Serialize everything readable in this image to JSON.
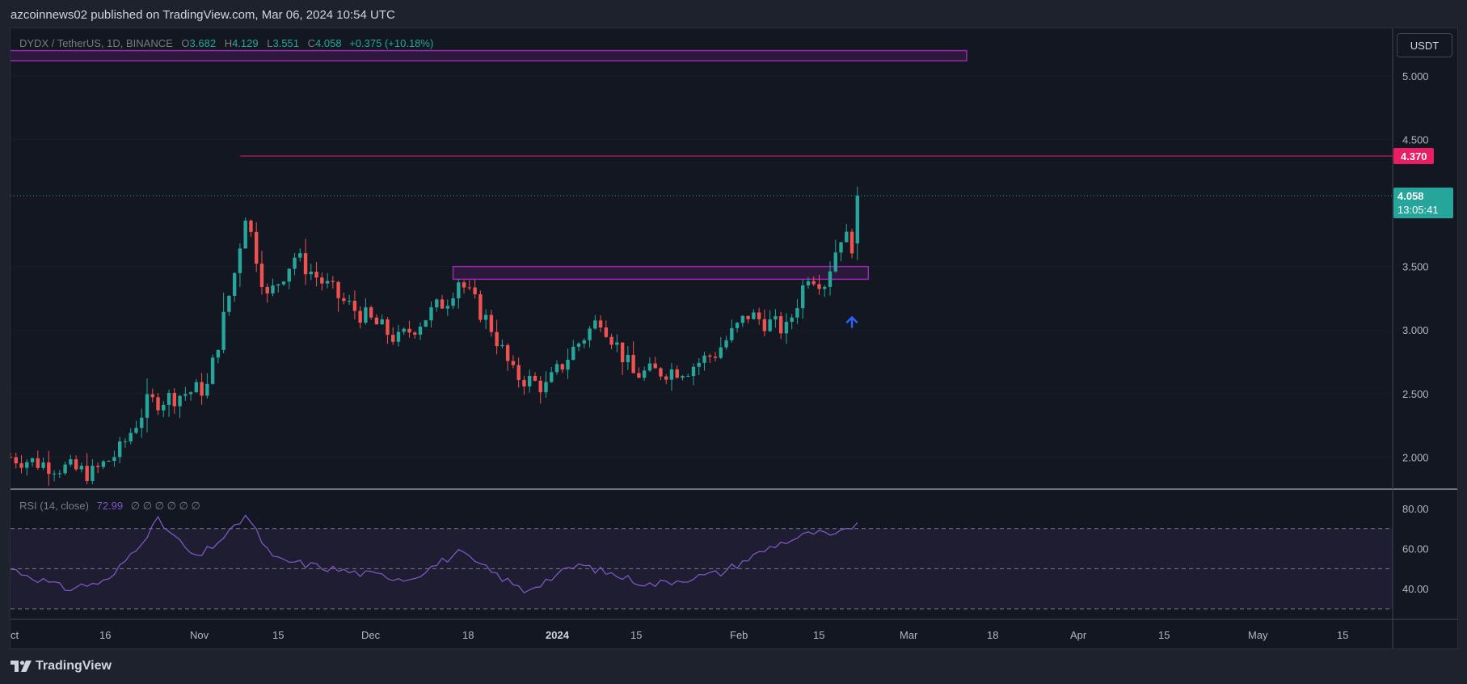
{
  "header": {
    "publisher": "azcoinnews02 published on TradingView.com, Mar 06, 2024 10:54 UTC"
  },
  "legend": {
    "symbol": "DYDX / TetherUS, 1D, BINANCE",
    "o_label": "O",
    "o": "3.682",
    "h_label": "H",
    "h": "4.129",
    "l_label": "L",
    "l": "3.551",
    "c_label": "C",
    "c": "4.058",
    "change": "+0.375 (+10.18%)"
  },
  "currency_button": "USDT",
  "price_axis": {
    "ticks": [
      "5.000",
      "4.500",
      "3.500",
      "3.000",
      "2.500",
      "2.000"
    ],
    "tick_values": [
      5.0,
      4.5,
      3.5,
      3.0,
      2.5,
      2.0
    ],
    "resistance_label": "4.370",
    "last_price_label": "4.058",
    "countdown_label": "13:05:41"
  },
  "rsi": {
    "title": "RSI (14, close)",
    "value": "72.99",
    "extras": "∅ ∅ ∅ ∅ ∅ ∅",
    "ticks": [
      "80.00",
      "60.00",
      "40.00"
    ],
    "tick_values": [
      80,
      60,
      40
    ]
  },
  "time_axis": {
    "labels": [
      "ct",
      "16",
      "Nov",
      "15",
      "Dec",
      "18",
      "2024",
      "15",
      "Feb",
      "15",
      "Mar",
      "18",
      "Apr",
      "15",
      "May",
      "15"
    ],
    "bold": [
      false,
      false,
      false,
      false,
      false,
      false,
      true,
      false,
      false,
      false,
      false,
      false,
      false,
      false,
      false,
      false
    ]
  },
  "brand": {
    "name": "TradingView"
  },
  "colors": {
    "up": "#26a69a",
    "down": "#ef5350",
    "rsi": "#7e57c2",
    "resistance": "#e91e63",
    "zone": "#9c27b0",
    "arrow": "#2962ff"
  },
  "chart_data": {
    "type": "candlestick",
    "symbol": "DYDX / TetherUS",
    "interval": "1D",
    "exchange": "BINANCE",
    "start_date": "2023-10-03",
    "end_date": "2024-03-06",
    "ylim": [
      1.75,
      5.35
    ],
    "key_points": [
      {
        "date": "2023-10-03",
        "close": 2.0
      },
      {
        "date": "2023-10-18",
        "close": 1.87
      },
      {
        "date": "2023-10-23",
        "close": 2.05
      },
      {
        "date": "2023-10-28",
        "close": 2.42
      },
      {
        "date": "2023-11-08",
        "close": 2.55
      },
      {
        "date": "2023-11-13",
        "close": 3.45
      },
      {
        "date": "2023-11-15",
        "close": 3.92
      },
      {
        "date": "2023-11-19",
        "close": 3.25
      },
      {
        "date": "2023-11-24",
        "close": 3.58
      },
      {
        "date": "2023-12-03",
        "close": 3.22
      },
      {
        "date": "2023-12-13",
        "close": 2.92
      },
      {
        "date": "2023-12-22",
        "close": 3.25
      },
      {
        "date": "2023-12-24",
        "close": 3.4
      },
      {
        "date": "2023-12-30",
        "close": 3.02
      },
      {
        "date": "2024-01-03",
        "close": 2.65
      },
      {
        "date": "2024-01-09",
        "close": 2.55
      },
      {
        "date": "2024-01-14",
        "close": 2.85
      },
      {
        "date": "2024-01-19",
        "close": 3.1
      },
      {
        "date": "2024-01-25",
        "close": 2.65
      },
      {
        "date": "2024-02-04",
        "close": 2.7
      },
      {
        "date": "2024-02-09",
        "close": 2.82
      },
      {
        "date": "2024-02-15",
        "close": 3.12
      },
      {
        "date": "2024-02-22",
        "close": 3.0
      },
      {
        "date": "2024-02-26",
        "close": 3.45
      },
      {
        "date": "2024-02-29",
        "close": 3.38
      },
      {
        "date": "2024-03-03",
        "close": 3.75
      },
      {
        "date": "2024-03-05",
        "close": 3.68
      },
      {
        "date": "2024-03-06",
        "close": 4.058
      }
    ],
    "last_candle": {
      "date": "2024-03-06",
      "open": 3.682,
      "high": 4.129,
      "low": 3.551,
      "close": 4.058
    },
    "horizontal_line": {
      "price": 4.37,
      "label": "4.370"
    },
    "zones": [
      {
        "from_date": "2023-10-01",
        "to_date": "2024-03-26",
        "low": 5.12,
        "high": 5.2
      },
      {
        "from_date": "2023-12-23",
        "to_date": "2024-03-08",
        "low": 3.4,
        "high": 3.5
      }
    ],
    "annotation_arrow": {
      "date": "2024-03-05",
      "price": 3.1,
      "direction": "up"
    },
    "rsi_series": {
      "name": "RSI (14, close)",
      "ylim": [
        30,
        85
      ],
      "bands": [
        70,
        50,
        30
      ],
      "key_points": [
        {
          "date": "2023-10-03",
          "value": 50
        },
        {
          "date": "2023-10-13",
          "value": 40
        },
        {
          "date": "2023-10-21",
          "value": 44
        },
        {
          "date": "2023-10-30",
          "value": 74
        },
        {
          "date": "2023-11-06",
          "value": 55
        },
        {
          "date": "2023-11-13",
          "value": 70
        },
        {
          "date": "2023-11-15",
          "value": 77
        },
        {
          "date": "2023-11-20",
          "value": 55
        },
        {
          "date": "2023-12-05",
          "value": 48
        },
        {
          "date": "2023-12-15",
          "value": 45
        },
        {
          "date": "2023-12-24",
          "value": 58
        },
        {
          "date": "2024-01-05",
          "value": 39
        },
        {
          "date": "2024-01-15",
          "value": 52
        },
        {
          "date": "2024-01-28",
          "value": 42
        },
        {
          "date": "2024-02-10",
          "value": 48
        },
        {
          "date": "2024-02-20",
          "value": 62
        },
        {
          "date": "2024-02-27",
          "value": 68
        },
        {
          "date": "2024-03-02",
          "value": 66
        },
        {
          "date": "2024-03-06",
          "value": 72.99
        }
      ]
    }
  }
}
